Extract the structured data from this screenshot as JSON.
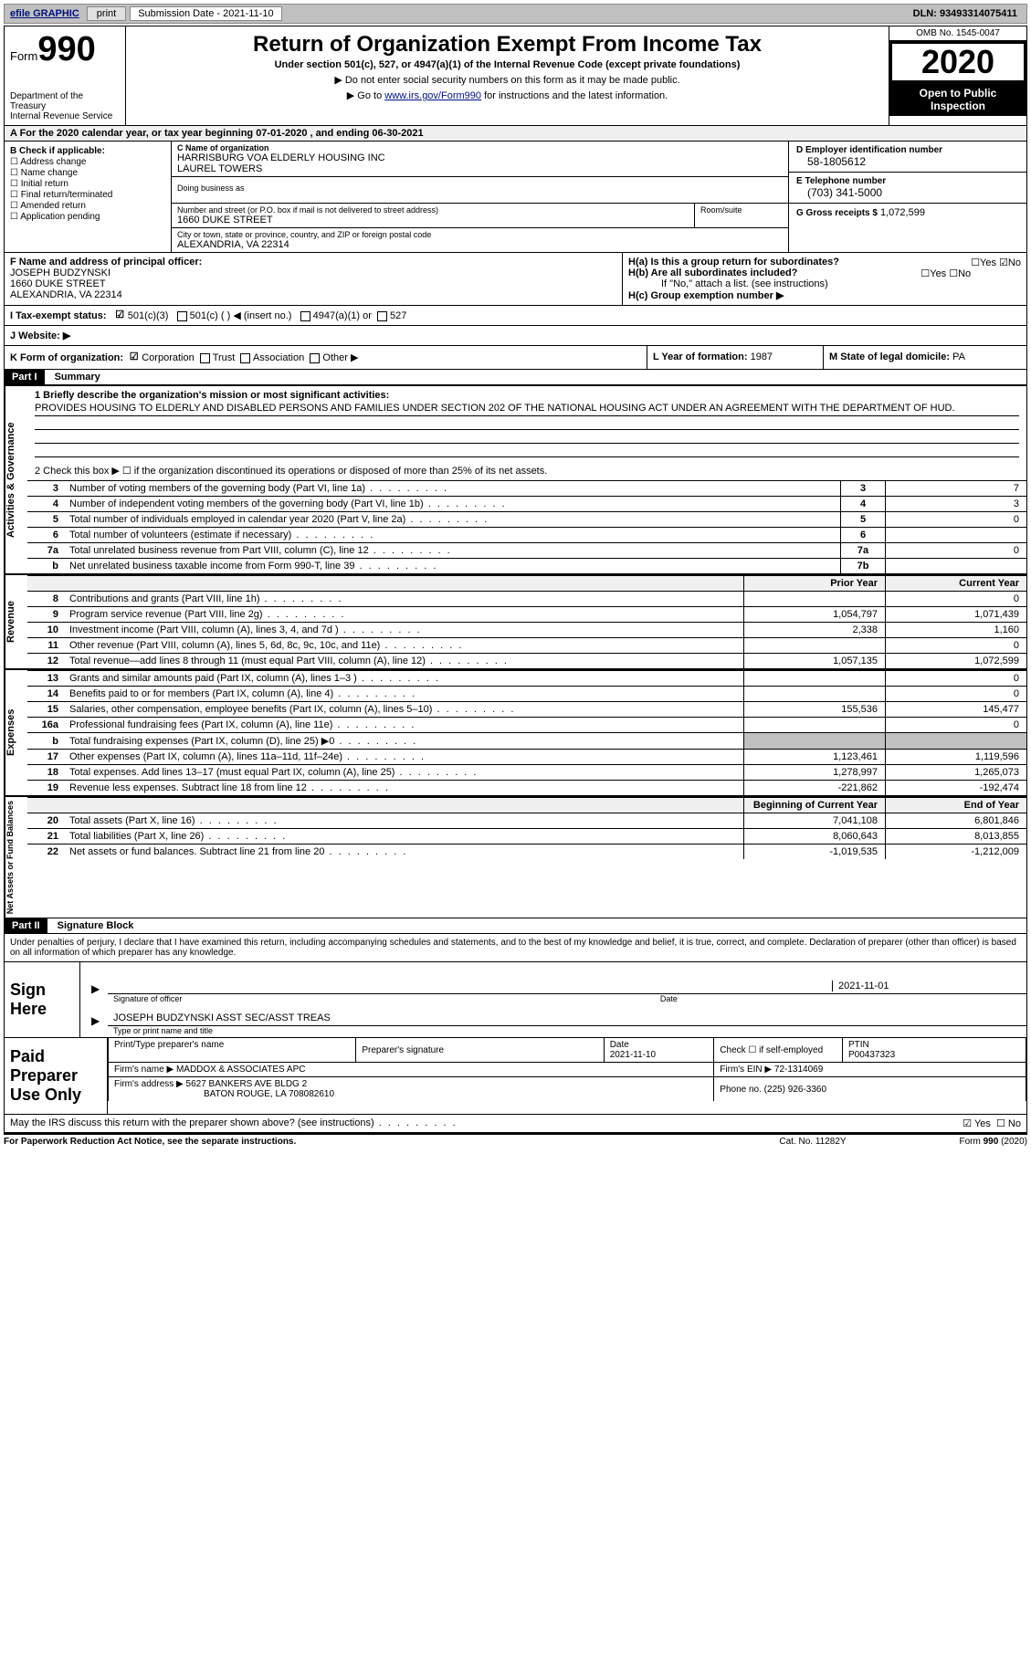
{
  "toolbar": {
    "efile_label": "efile GRAPHIC",
    "print_label": "print",
    "submission_label": "Submission Date - 2021-11-10",
    "dln_label": "DLN: 93493314075411"
  },
  "header": {
    "form_prefix": "Form",
    "form_number": "990",
    "dept": "Department of the Treasury\nInternal Revenue Service",
    "title": "Return of Organization Exempt From Income Tax",
    "subtitle1": "Under section 501(c), 527, or 4947(a)(1) of the Internal Revenue Code (except private foundations)",
    "subtitle2a": "▶ Do not enter social security numbers on this form as it may be made public.",
    "subtitle2b_prefix": "▶ Go to ",
    "subtitle2b_link": "www.irs.gov/Form990",
    "subtitle2b_suffix": " for instructions and the latest information.",
    "omb": "OMB No. 1545-0047",
    "year": "2020",
    "open_public": "Open to Public Inspection"
  },
  "period": {
    "line": "A For the 2020 calendar year, or tax year beginning 07-01-2020    , and ending 06-30-2021"
  },
  "block_b": {
    "heading": "B Check if applicable:",
    "items": [
      "Address change",
      "Name change",
      "Initial return",
      "Final return/terminated",
      "Amended return",
      "Application pending"
    ]
  },
  "block_c": {
    "label": "C Name of organization",
    "name1": "HARRISBURG VOA ELDERLY HOUSING INC",
    "name2": "LAUREL TOWERS",
    "dba_label": "Doing business as",
    "addr_label": "Number and street (or P.O. box if mail is not delivered to street address)",
    "addr": "1660 DUKE STREET",
    "room_label": "Room/suite",
    "city_label": "City or town, state or province, country, and ZIP or foreign postal code",
    "city": "ALEXANDRIA, VA  22314"
  },
  "block_d": {
    "label": "D Employer identification number",
    "value": "58-1805612"
  },
  "block_e": {
    "label": "E Telephone number",
    "value": "(703) 341-5000"
  },
  "block_g": {
    "label": "G Gross receipts $",
    "value": "1,072,599"
  },
  "block_f": {
    "label": "F Name and address of principal officer:",
    "name": "JOSEPH BUDZYNSKI",
    "addr1": "1660 DUKE STREET",
    "addr2": "ALEXANDRIA, VA  22314"
  },
  "block_h": {
    "ha_label": "H(a)  Is this a group return for subordinates?",
    "ha_yes": "☐Yes",
    "ha_no": "☑No",
    "hb_label": "H(b)  Are all subordinates included?",
    "hb_yes": "☐Yes",
    "hb_no": "☐No",
    "hb_note": "If \"No,\" attach a list. (see instructions)",
    "hc_label": "H(c)  Group exemption number ▶"
  },
  "block_i": {
    "label": "I   Tax-exempt status:",
    "opt1": "501(c)(3)",
    "opt2": "501(c) (  ) ◀ (insert no.)",
    "opt3": "4947(a)(1) or",
    "opt4": "527"
  },
  "block_j": {
    "label": "J   Website: ▶"
  },
  "block_k": {
    "label": "K Form of organization:",
    "opts": [
      "Corporation",
      "Trust",
      "Association",
      "Other ▶"
    ]
  },
  "block_l": {
    "label": "L Year of formation:",
    "value": "1987"
  },
  "block_m": {
    "label": "M State of legal domicile:",
    "value": "PA"
  },
  "part1": {
    "header": "Part I",
    "title": "Summary",
    "line1_label": "1   Briefly describe the organization's mission or most significant activities:",
    "mission": "PROVIDES HOUSING TO ELDERLY AND DISABLED PERSONS AND FAMILIES UNDER SECTION 202 OF THE NATIONAL HOUSING ACT UNDER AN AGREEMENT WITH THE DEPARTMENT OF HUD.",
    "line2": "2   Check this box ▶ ☐  if the organization discontinued its operations or disposed of more than 25% of its net assets.",
    "governance_rows": [
      {
        "num": "3",
        "desc": "Number of voting members of the governing body (Part VI, line 1a)",
        "box": "3",
        "val": "7"
      },
      {
        "num": "4",
        "desc": "Number of independent voting members of the governing body (Part VI, line 1b)",
        "box": "4",
        "val": "3"
      },
      {
        "num": "5",
        "desc": "Total number of individuals employed in calendar year 2020 (Part V, line 2a)",
        "box": "5",
        "val": "0"
      },
      {
        "num": "6",
        "desc": "Total number of volunteers (estimate if necessary)",
        "box": "6",
        "val": ""
      },
      {
        "num": "7a",
        "desc": "Total unrelated business revenue from Part VIII, column (C), line 12",
        "box": "7a",
        "val": "0"
      },
      {
        "num": "b",
        "desc": "Net unrelated business taxable income from Form 990-T, line 39",
        "box": "7b",
        "val": ""
      }
    ],
    "prior_year_hdr": "Prior Year",
    "current_year_hdr": "Current Year",
    "revenue_rows": [
      {
        "num": "8",
        "desc": "Contributions and grants (Part VIII, line 1h)",
        "prior": "",
        "curr": "0"
      },
      {
        "num": "9",
        "desc": "Program service revenue (Part VIII, line 2g)",
        "prior": "1,054,797",
        "curr": "1,071,439"
      },
      {
        "num": "10",
        "desc": "Investment income (Part VIII, column (A), lines 3, 4, and 7d )",
        "prior": "2,338",
        "curr": "1,160"
      },
      {
        "num": "11",
        "desc": "Other revenue (Part VIII, column (A), lines 5, 6d, 8c, 9c, 10c, and 11e)",
        "prior": "",
        "curr": "0"
      },
      {
        "num": "12",
        "desc": "Total revenue—add lines 8 through 11 (must equal Part VIII, column (A), line 12)",
        "prior": "1,057,135",
        "curr": "1,072,599"
      }
    ],
    "expense_rows": [
      {
        "num": "13",
        "desc": "Grants and similar amounts paid (Part IX, column (A), lines 1–3 )",
        "prior": "",
        "curr": "0"
      },
      {
        "num": "14",
        "desc": "Benefits paid to or for members (Part IX, column (A), line 4)",
        "prior": "",
        "curr": "0"
      },
      {
        "num": "15",
        "desc": "Salaries, other compensation, employee benefits (Part IX, column (A), lines 5–10)",
        "prior": "155,536",
        "curr": "145,477"
      },
      {
        "num": "16a",
        "desc": "Professional fundraising fees (Part IX, column (A), line 11e)",
        "prior": "",
        "curr": "0"
      },
      {
        "num": "b",
        "desc": "Total fundraising expenses (Part IX, column (D), line 25) ▶0",
        "prior": "SHADED",
        "curr": "SHADED"
      },
      {
        "num": "17",
        "desc": "Other expenses (Part IX, column (A), lines 11a–11d, 11f–24e)",
        "prior": "1,123,461",
        "curr": "1,119,596"
      },
      {
        "num": "18",
        "desc": "Total expenses. Add lines 13–17 (must equal Part IX, column (A), line 25)",
        "prior": "1,278,997",
        "curr": "1,265,073"
      },
      {
        "num": "19",
        "desc": "Revenue less expenses. Subtract line 18 from line 12",
        "prior": "-221,862",
        "curr": "-192,474"
      }
    ],
    "begin_year_hdr": "Beginning of Current Year",
    "end_year_hdr": "End of Year",
    "net_rows": [
      {
        "num": "20",
        "desc": "Total assets (Part X, line 16)",
        "prior": "7,041,108",
        "curr": "6,801,846"
      },
      {
        "num": "21",
        "desc": "Total liabilities (Part X, line 26)",
        "prior": "8,060,643",
        "curr": "8,013,855"
      },
      {
        "num": "22",
        "desc": "Net assets or fund balances. Subtract line 21 from line 20",
        "prior": "-1,019,535",
        "curr": "-1,212,009"
      }
    ],
    "vert_governance": "Activities & Governance",
    "vert_revenue": "Revenue",
    "vert_expenses": "Expenses",
    "vert_net": "Net Assets or Fund Balances"
  },
  "part2": {
    "header": "Part II",
    "title": "Signature Block",
    "penalty": "Under penalties of perjury, I declare that I have examined this return, including accompanying schedules and statements, and to the best of my knowledge and belief, it is true, correct, and complete. Declaration of preparer (other than officer) is based on all information of which preparer has any knowledge."
  },
  "sign": {
    "label": "Sign Here",
    "sig_caption": "Signature of officer",
    "sig_date": "2021-11-01",
    "date_caption": "Date",
    "name": "JOSEPH BUDZYNSKI  ASST SEC/ASST TREAS",
    "name_caption": "Type or print name and title"
  },
  "preparer": {
    "label": "Paid Preparer Use Only",
    "col1": "Print/Type preparer's name",
    "col2": "Preparer's signature",
    "col3_label": "Date",
    "col3_val": "2021-11-10",
    "col4_label": "Check ☐ if self-employed",
    "col5_label": "PTIN",
    "col5_val": "P00437323",
    "firm_name_label": "Firm's name    ▶",
    "firm_name": "MADDOX & ASSOCIATES APC",
    "firm_ein_label": "Firm's EIN ▶",
    "firm_ein": "72-1314069",
    "firm_addr_label": "Firm's address ▶",
    "firm_addr1": "5627 BANKERS AVE BLDG 2",
    "firm_addr2": "BATON ROUGE, LA  708082610",
    "phone_label": "Phone no.",
    "phone": "(225) 926-3360"
  },
  "discuss": {
    "text": "May the IRS discuss this return with the preparer shown above? (see instructions)",
    "yes": "☑ Yes",
    "no": "☐ No"
  },
  "footer": {
    "left": "For Paperwork Reduction Act Notice, see the separate instructions.",
    "mid": "Cat. No. 11282Y",
    "right": "Form 990 (2020)"
  }
}
